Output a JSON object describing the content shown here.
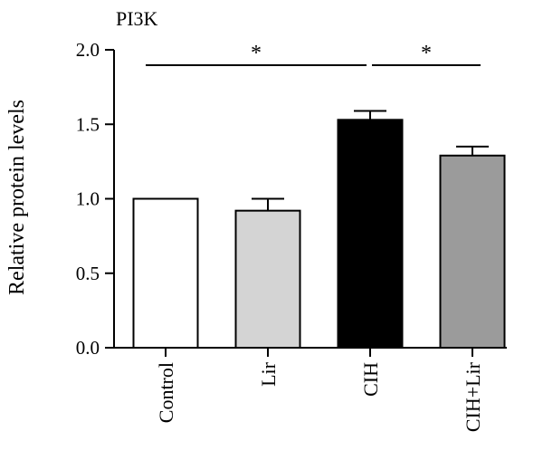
{
  "chart_data": {
    "type": "bar",
    "title": "PI3K",
    "xlabel": "",
    "ylabel": "Relative protein levels",
    "ylim": [
      0,
      2.0
    ],
    "yticks": [
      "0.0",
      "0.5",
      "1.0",
      "1.5",
      "2.0"
    ],
    "grid": false,
    "categories": [
      "Control",
      "Lir",
      "CIH",
      "CIH+Lir"
    ],
    "values": [
      1.0,
      0.92,
      1.53,
      1.29
    ],
    "errors": [
      0,
      0.08,
      0.06,
      0.06
    ],
    "bar_colors": [
      "#ffffff",
      "#d4d4d4",
      "#000000",
      "#9b9b9b"
    ],
    "significance": [
      {
        "from": "Control",
        "to": "CIH",
        "label": "*"
      },
      {
        "from": "CIH",
        "to": "CIH+Lir",
        "label": "*"
      }
    ]
  }
}
